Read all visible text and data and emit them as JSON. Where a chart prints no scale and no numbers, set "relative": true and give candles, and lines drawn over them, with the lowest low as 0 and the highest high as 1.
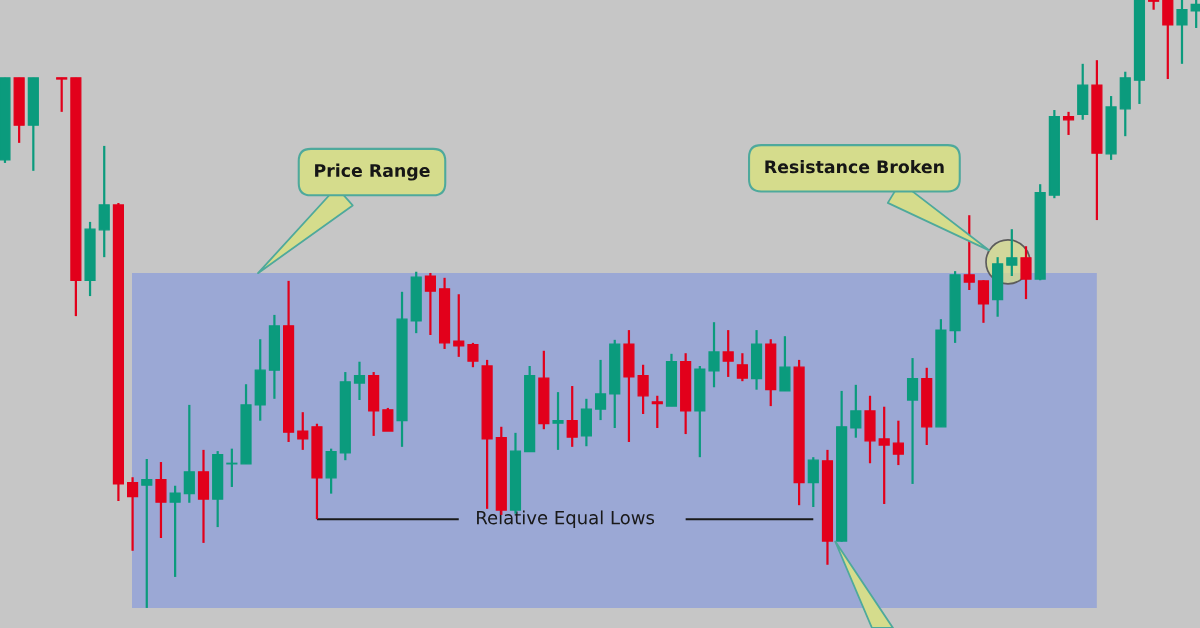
{
  "chart_data": {
    "type": "candlestick",
    "relative": true,
    "categories": [
      null,
      null,
      null,
      null,
      null,
      null,
      null,
      null,
      null,
      null,
      null,
      null,
      null,
      null,
      null,
      null,
      null,
      null,
      null,
      null,
      null,
      null,
      null,
      null,
      null,
      null,
      null,
      null,
      null,
      null,
      null,
      null,
      null,
      null,
      null,
      null,
      null,
      null,
      null,
      null,
      null,
      null,
      null,
      null,
      null,
      null,
      null,
      null,
      null,
      null,
      null,
      null,
      null,
      null,
      null,
      null,
      null,
      null,
      null,
      null,
      null,
      null,
      null,
      null,
      null,
      null,
      null,
      null,
      null,
      null,
      null,
      null,
      null,
      null,
      null,
      null,
      null,
      null,
      null,
      null,
      null,
      null,
      null,
      null,
      null
    ],
    "ohlc": [
      [
        0.737,
        0.872,
        0.732,
        0.872
      ],
      [
        0.872,
        0.872,
        0.765,
        0.794
      ],
      [
        0.794,
        0.872,
        0.719,
        0.872
      ],
      null,
      [
        0.872,
        0.872,
        0.816,
        0.87
      ],
      [
        0.872,
        0.872,
        0.48,
        0.539
      ],
      [
        0.539,
        0.635,
        0.513,
        0.623
      ],
      [
        0.622,
        0.76,
        0.577,
        0.663
      ],
      [
        0.663,
        0.666,
        0.176,
        0.204
      ],
      [
        0.206,
        0.215,
        0.094,
        0.183
      ],
      [
        0.202,
        0.245,
        0,
        0.211
      ],
      [
        0.211,
        0.24,
        0.115,
        0.174
      ],
      [
        0.174,
        0.201,
        0.051,
        0.189
      ],
      [
        0.188,
        0.334,
        0.173,
        0.224
      ],
      [
        0.224,
        0.26,
        0.107,
        0.179
      ],
      [
        0.179,
        0.258,
        0.133,
        0.252
      ],
      [
        0.237,
        0.262,
        0.199,
        0.238
      ],
      [
        0.237,
        0.368,
        0.237,
        0.334
      ],
      [
        0.334,
        0.442,
        0.308,
        0.391
      ],
      [
        0.391,
        0.482,
        0.344,
        0.464
      ],
      [
        0.464,
        0.538,
        0.273,
        0.289
      ],
      [
        0.291,
        0.322,
        0.26,
        0.278
      ],
      [
        0.298,
        0.303,
        0.146,
        0.214
      ],
      [
        0.214,
        0.262,
        0.188,
        0.257
      ],
      [
        0.255,
        0.388,
        0.243,
        0.372
      ],
      [
        0.37,
        0.405,
        0.342,
        0.382
      ],
      [
        0.382,
        0.388,
        0.283,
        0.324
      ],
      [
        0.326,
        0.329,
        0.291,
        0.291
      ],
      [
        0.308,
        0.52,
        0.265,
        0.475
      ],
      [
        0.472,
        0.553,
        0.452,
        0.544
      ],
      [
        0.546,
        0.551,
        0.449,
        0.521
      ],
      [
        0.525,
        0.543,
        0.426,
        0.436
      ],
      [
        0.439,
        0.516,
        0.413,
        0.431
      ],
      [
        0.433,
        0.436,
        0.396,
        0.406
      ],
      [
        0.398,
        0.408,
        0.163,
        0.278
      ],
      [
        0.28,
        0.298,
        0.153,
        0.161
      ],
      [
        0.161,
        0.288,
        0.155,
        0.258
      ],
      [
        0.257,
        0.398,
        0.257,
        0.382
      ],
      [
        0.378,
        0.423,
        0.294,
        0.303
      ],
      [
        0.304,
        0.355,
        0.26,
        0.308
      ],
      [
        0.308,
        0.365,
        0.265,
        0.281
      ],
      [
        0.283,
        0.344,
        0.266,
        0.327
      ],
      [
        0.327,
        0.408,
        0.309,
        0.352
      ],
      [
        0.352,
        0.441,
        0.296,
        0.434
      ],
      [
        0.434,
        0.457,
        0.273,
        0.38
      ],
      [
        0.382,
        0.4,
        0.319,
        0.349
      ],
      [
        0.339,
        0.349,
        0.296,
        0.336
      ],
      [
        0.332,
        0.418,
        0.332,
        0.405
      ],
      [
        0.405,
        0.419,
        0.286,
        0.324
      ],
      [
        0.324,
        0.398,
        0.248,
        0.393
      ],
      [
        0.39,
        0.47,
        0.363,
        0.421
      ],
      [
        0.421,
        0.457,
        0.38,
        0.406
      ],
      [
        0.4,
        0.419,
        0.373,
        0.378
      ],
      [
        0.377,
        0.457,
        0.359,
        0.434
      ],
      [
        0.434,
        0.442,
        0.332,
        0.359
      ],
      [
        0.357,
        0.447,
        0.357,
        0.396
      ],
      [
        0.396,
        0.408,
        0.169,
        0.206
      ],
      [
        0.206,
        0.248,
        0.166,
        0.243
      ],
      [
        0.242,
        0.26,
        0.071,
        0.11
      ],
      [
        0.11,
        0.357,
        0.109,
        0.298
      ],
      [
        0.296,
        0.367,
        0.28,
        0.324
      ],
      [
        0.324,
        0.349,
        0.238,
        0.275
      ],
      [
        0.278,
        0.331,
        0.171,
        0.268
      ],
      [
        0.271,
        0.308,
        0.235,
        0.253
      ],
      [
        0.342,
        0.411,
        0.204,
        0.377
      ],
      [
        0.377,
        0.395,
        0.268,
        0.298
      ],
      [
        0.298,
        0.475,
        0.298,
        0.457
      ],
      [
        0.456,
        0.554,
        0.436,
        0.548
      ],
      [
        0.548,
        0.646,
        0.523,
        0.536
      ],
      [
        0.538,
        0.539,
        0.469,
        0.5
      ],
      [
        0.507,
        0.577,
        0.479,
        0.566
      ],
      [
        0.564,
        0.623,
        0.546,
        0.576
      ],
      [
        0.576,
        0.595,
        0.508,
        0.541
      ],
      [
        0.541,
        0.697,
        0.539,
        0.683
      ],
      [
        0.679,
        0.819,
        0.674,
        0.808
      ],
      [
        0.808,
        0.816,
        0.778,
        0.803
      ],
      [
        0.812,
        0.895,
        0.803,
        0.86
      ],
      [
        0.86,
        0.901,
        0.638,
        0.748
      ],
      [
        0.747,
        0.842,
        0.737,
        0.824
      ],
      [
        0.821,
        0.882,
        0.776,
        0.872
      ],
      [
        0.868,
        1,
        0.829,
        1
      ],
      [
        1,
        1,
        0.984,
        0.998
      ],
      [
        1,
        1,
        0.87,
        0.959
      ],
      [
        0.959,
        1,
        0.895,
        0.984
      ],
      [
        0.982,
        1,
        0.954,
        0.993
      ]
    ],
    "colors": [
      "#0b9b7d",
      "#e2001b",
      "#0b9b7d",
      null,
      "#e2001b",
      "#e2001b",
      "#0b9b7d",
      "#0b9b7d",
      "#e2001b",
      "#e2001b",
      "#0b9b7d",
      "#e2001b",
      "#0b9b7d",
      "#0b9b7d",
      "#e2001b",
      "#0b9b7d",
      "#0b9b7d",
      "#0b9b7d",
      "#0b9b7d",
      "#0b9b7d",
      "#e2001b",
      "#e2001b",
      "#e2001b",
      "#0b9b7d",
      "#0b9b7d",
      "#0b9b7d",
      "#e2001b",
      "#e2001b",
      "#0b9b7d",
      "#0b9b7d",
      "#e2001b",
      "#e2001b",
      "#e2001b",
      "#e2001b",
      "#e2001b",
      "#e2001b",
      "#0b9b7d",
      "#0b9b7d",
      "#e2001b",
      "#0b9b7d",
      "#e2001b",
      "#0b9b7d",
      "#0b9b7d",
      "#0b9b7d",
      "#e2001b",
      "#e2001b",
      "#e2001b",
      "#0b9b7d",
      "#e2001b",
      "#0b9b7d",
      "#0b9b7d",
      "#e2001b",
      "#e2001b",
      "#0b9b7d",
      "#e2001b",
      "#0b9b7d",
      "#e2001b",
      "#0b9b7d",
      "#e2001b",
      "#0b9b7d",
      "#0b9b7d",
      "#e2001b",
      "#e2001b",
      "#e2001b",
      "#0b9b7d",
      "#e2001b",
      "#0b9b7d",
      "#0b9b7d",
      "#e2001b",
      "#e2001b",
      "#0b9b7d",
      "#0b9b7d",
      "#e2001b",
      "#0b9b7d",
      "#0b9b7d",
      "#e2001b",
      "#0b9b7d",
      "#e2001b",
      "#0b9b7d",
      "#0b9b7d",
      "#0b9b7d",
      "#e2001b",
      "#e2001b",
      "#0b9b7d",
      "#0b9b7d"
    ],
    "series": [
      {
        "type": "line",
        "name": "Relative Equal Lows",
        "color": "#1a1a1a",
        "values": [
          null,
          null,
          null,
          null,
          null,
          null,
          null,
          null,
          null,
          null,
          null,
          null,
          null,
          null,
          null,
          null,
          null,
          null,
          null,
          null,
          null,
          null,
          0.146,
          0.146,
          0.146,
          0.146,
          0.146,
          0.146,
          0.146,
          0.146,
          0.146,
          0.146,
          0.146,
          null,
          null,
          null,
          null,
          null,
          null,
          null,
          null,
          null,
          null,
          null,
          null,
          null,
          null,
          null,
          0.146,
          0.146,
          0.146,
          0.146,
          0.146,
          0.146,
          0.146,
          0.146,
          0.146,
          0.146,
          null,
          null,
          null,
          null,
          null,
          null,
          null,
          null,
          null,
          null,
          null,
          null,
          null,
          null,
          null,
          null,
          null,
          null,
          null,
          null,
          null,
          null,
          null,
          null,
          null,
          null,
          null
        ]
      }
    ],
    "bands": [
      {
        "axis": "y",
        "from": 0,
        "to": 0.551,
        "color": "#9ba8d5"
      }
    ],
    "annotations": [
      "Price Range",
      "Resistance Broken"
    ]
  }
}
